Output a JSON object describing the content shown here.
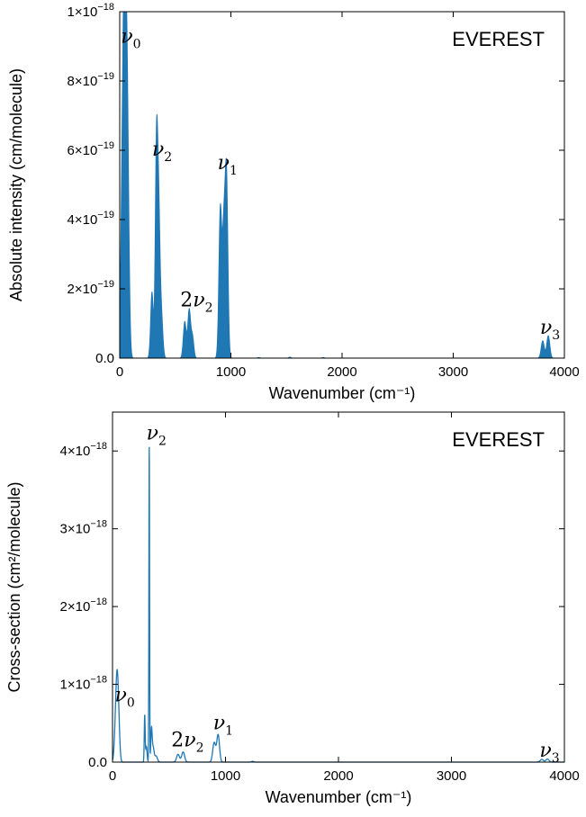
{
  "colors": {
    "series": "#1f77b4",
    "axes": "#000000"
  },
  "chart_data": [
    {
      "type": "line",
      "fill": true,
      "title": "EVEREST",
      "xlabel": "Wavenumber (cm⁻¹)",
      "ylabel": "Absolute intensity (cm/molecule)",
      "xlim": [
        0,
        4000
      ],
      "ylim": [
        0,
        1e-18
      ],
      "grid": false,
      "x_ticks": [
        0,
        1000,
        2000,
        3000,
        4000
      ],
      "x_tick_labels": [
        "0",
        "1000",
        "2000",
        "3000",
        "4000"
      ],
      "y_ticks": [
        0,
        2e-19,
        4e-19,
        6e-19,
        8e-19,
        1e-18
      ],
      "y_tick_labels": [
        {
          "mant": "0.0",
          "exp": ""
        },
        {
          "mant": "2×10",
          "exp": "−19"
        },
        {
          "mant": "4×10",
          "exp": "−19"
        },
        {
          "mant": "6×10",
          "exp": "−19"
        },
        {
          "mant": "8×10",
          "exp": "−19"
        },
        {
          "mant": "1×10",
          "exp": "−18"
        }
      ],
      "bands": [
        {
          "center": 25,
          "height": 5.8e-19,
          "width": 14
        },
        {
          "center": 45,
          "height": 8.8e-19,
          "width": 12
        },
        {
          "center": 65,
          "height": 6.5e-19,
          "width": 12
        },
        {
          "center": 80,
          "height": 2e-19,
          "width": 12
        },
        {
          "center": 290,
          "height": 1.9e-19,
          "width": 12
        },
        {
          "center": 330,
          "height": 5.7e-19,
          "width": 11
        },
        {
          "center": 350,
          "height": 4.1e-19,
          "width": 12
        },
        {
          "center": 375,
          "height": 1.2e-19,
          "width": 13
        },
        {
          "center": 585,
          "height": 1.05e-19,
          "width": 13
        },
        {
          "center": 625,
          "height": 1.4e-19,
          "width": 13
        },
        {
          "center": 655,
          "height": 6e-20,
          "width": 12
        },
        {
          "center": 905,
          "height": 4.3e-19,
          "width": 13
        },
        {
          "center": 935,
          "height": 3.2e-19,
          "width": 12
        },
        {
          "center": 960,
          "height": 5.3e-19,
          "width": 13
        },
        {
          "center": 1250,
          "height": 2e-21,
          "width": 10
        },
        {
          "center": 1530,
          "height": 3e-21,
          "width": 10
        },
        {
          "center": 1830,
          "height": 2e-21,
          "width": 10
        },
        {
          "center": 3805,
          "height": 5e-20,
          "width": 14
        },
        {
          "center": 3855,
          "height": 6.5e-20,
          "width": 14
        }
      ],
      "peak_labels": [
        {
          "sym": "ν",
          "pre": "",
          "sub": "0",
          "x": 10,
          "y": 9.1e-19
        },
        {
          "sym": "ν",
          "pre": "",
          "sub": "2",
          "x": 290,
          "y": 5.85e-19
        },
        {
          "sym": "ν",
          "pre": "2",
          "sub": "2",
          "x": 545,
          "y": 1.5e-19
        },
        {
          "sym": "ν",
          "pre": "",
          "sub": "1",
          "x": 880,
          "y": 5.45e-19
        },
        {
          "sym": "ν",
          "pre": "",
          "sub": "3",
          "x": 3780,
          "y": 7e-20
        }
      ]
    },
    {
      "type": "line",
      "fill": false,
      "title": "EVEREST",
      "xlabel": "Wavenumber (cm⁻¹)",
      "ylabel": "Cross-section (cm²/molecule)",
      "xlim": [
        0,
        4000
      ],
      "ylim": [
        0,
        4.5e-18
      ],
      "grid": false,
      "x_ticks": [
        0,
        1000,
        2000,
        3000,
        4000
      ],
      "x_tick_labels": [
        "0",
        "1000",
        "2000",
        "3000",
        "4000"
      ],
      "y_ticks": [
        0,
        1e-18,
        2e-18,
        3e-18,
        4e-18
      ],
      "y_tick_labels": [
        {
          "mant": "0.0",
          "exp": ""
        },
        {
          "mant": "1×10",
          "exp": "−18"
        },
        {
          "mant": "2×10",
          "exp": "−18"
        },
        {
          "mant": "3×10",
          "exp": "−18"
        },
        {
          "mant": "4×10",
          "exp": "−18"
        }
      ],
      "bands": [
        {
          "center": 30,
          "height": 5.5e-19,
          "width": 12
        },
        {
          "center": 42,
          "height": 6.8e-19,
          "width": 10
        },
        {
          "center": 55,
          "height": 4e-19,
          "width": 10
        },
        {
          "center": 285,
          "height": 6e-19,
          "width": 4
        },
        {
          "center": 300,
          "height": 2e-19,
          "width": 6
        },
        {
          "center": 325,
          "height": 4.05e-18,
          "width": 3
        },
        {
          "center": 345,
          "height": 4.2e-19,
          "width": 6
        },
        {
          "center": 360,
          "height": 1.8e-19,
          "width": 8
        },
        {
          "center": 385,
          "height": 8e-20,
          "width": 12
        },
        {
          "center": 580,
          "height": 1e-19,
          "width": 13
        },
        {
          "center": 625,
          "height": 1.3e-19,
          "width": 13
        },
        {
          "center": 900,
          "height": 2.5e-19,
          "width": 13
        },
        {
          "center": 935,
          "height": 3.5e-19,
          "width": 12
        },
        {
          "center": 1240,
          "height": 1e-20,
          "width": 10
        },
        {
          "center": 3800,
          "height": 3.5e-20,
          "width": 14
        },
        {
          "center": 3850,
          "height": 4e-20,
          "width": 14
        }
      ],
      "peak_labels": [
        {
          "sym": "ν",
          "pre": "",
          "sub": "0",
          "x": 20,
          "y": 7.8e-19
        },
        {
          "sym": "ν",
          "pre": "",
          "sub": "2",
          "x": 300,
          "y": 4.15e-18
        },
        {
          "sym": "ν",
          "pre": "2",
          "sub": "2",
          "x": 520,
          "y": 2e-19
        },
        {
          "sym": "ν",
          "pre": "",
          "sub": "1",
          "x": 890,
          "y": 4.2e-19
        },
        {
          "sym": "ν",
          "pre": "",
          "sub": "3",
          "x": 3780,
          "y": 7e-20
        }
      ]
    }
  ]
}
